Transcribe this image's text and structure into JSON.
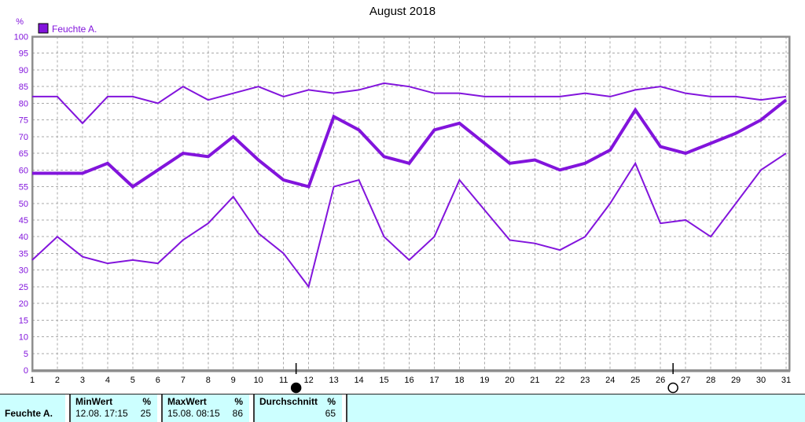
{
  "title": "August 2018",
  "legend": {
    "label": "Feuchte A."
  },
  "chart_data": {
    "type": "line",
    "title": "August 2018",
    "xlabel": "",
    "ylabel": "%",
    "ylim": [
      0,
      100
    ],
    "ytick_step": 5,
    "grid": true,
    "legend_position": "top-left",
    "legend_entries": [
      "Feuchte A."
    ],
    "x": [
      1,
      2,
      3,
      4,
      5,
      6,
      7,
      8,
      9,
      10,
      11,
      12,
      13,
      14,
      15,
      16,
      17,
      18,
      19,
      20,
      21,
      22,
      23,
      24,
      25,
      26,
      27,
      28,
      29,
      30,
      31
    ],
    "series": [
      {
        "name": "Feuchte A. Maximum",
        "role": "max",
        "style": "thin",
        "values": [
          82,
          82,
          74,
          82,
          82,
          80,
          85,
          81,
          83,
          85,
          82,
          84,
          83,
          84,
          86,
          85,
          83,
          83,
          82,
          82,
          82,
          82,
          83,
          82,
          84,
          85,
          83,
          82,
          82,
          81,
          82
        ]
      },
      {
        "name": "Feuchte A. Durchschnitt",
        "role": "average",
        "style": "thick",
        "values": [
          59,
          59,
          59,
          62,
          55,
          60,
          65,
          64,
          70,
          63,
          57,
          55,
          76,
          72,
          64,
          62,
          72,
          74,
          68,
          62,
          63,
          60,
          62,
          66,
          78,
          67,
          65,
          68,
          71,
          75,
          81
        ]
      },
      {
        "name": "Feuchte A. Minimum",
        "role": "min",
        "style": "thin",
        "values": [
          33,
          40,
          34,
          32,
          33,
          32,
          39,
          44,
          52,
          41,
          35,
          25,
          55,
          57,
          40,
          33,
          40,
          57,
          48,
          39,
          38,
          36,
          40,
          50,
          62,
          44,
          45,
          40,
          50,
          60,
          65
        ]
      }
    ],
    "annotations": [
      {
        "symbol": "new-moon",
        "x": 11.5
      },
      {
        "symbol": "full-moon",
        "x": 26.5
      }
    ]
  },
  "summary_table": {
    "row_label": "Feuchte A.",
    "columns": [
      {
        "header": "MinWert",
        "unit": "%",
        "datetime": "12.08. 17:15",
        "value": "25"
      },
      {
        "header": "MaxWert",
        "unit": "%",
        "datetime": "15.08. 08:15",
        "value": "86"
      },
      {
        "header": "Durchschnitt",
        "unit": "%",
        "datetime": "",
        "value": "65"
      }
    ]
  },
  "colors": {
    "series": "#8214DC",
    "axis_text": "#8214DC",
    "day_text": "#000000",
    "grid": "#A9A9A9",
    "frame": "#8E8E8E",
    "table_background": "#CCFFFF",
    "background": "#FFFFFF"
  }
}
